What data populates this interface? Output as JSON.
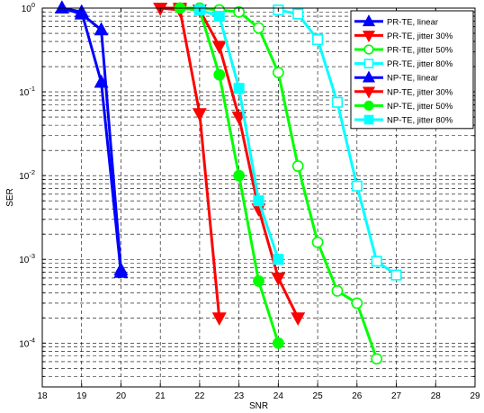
{
  "chart_data": {
    "type": "line",
    "xlabel": "SNR",
    "ylabel": "SER",
    "xlim": [
      18,
      29
    ],
    "ylim": [
      3e-05,
      1
    ],
    "yscale": "log",
    "grid": true,
    "x_ticks": [
      "18",
      "19",
      "20",
      "21",
      "22",
      "23",
      "24",
      "25",
      "26",
      "27",
      "28",
      "29"
    ],
    "y_ticks": [
      {
        "base": "10",
        "exp": "0",
        "value": 1
      },
      {
        "base": "10",
        "exp": "-1",
        "value": 0.1
      },
      {
        "base": "10",
        "exp": "-2",
        "value": 0.01
      },
      {
        "base": "10",
        "exp": "-3",
        "value": 0.001
      },
      {
        "base": "10",
        "exp": "-4",
        "value": 0.0001
      }
    ],
    "legend_position": "top-right",
    "series": [
      {
        "name": "PR-TE, linear",
        "color": "#0000ff",
        "marker": "triangle-up",
        "filled": true,
        "x": [
          18.5,
          19,
          19.5,
          20
        ],
        "y": [
          1,
          0.9,
          0.13,
          0.0007
        ]
      },
      {
        "name": "PR-TE, jitter 30%",
        "color": "#ff0000",
        "marker": "triangle-down",
        "filled": true,
        "x": [
          21,
          21.5,
          22,
          22.5,
          23,
          23.5,
          24,
          24.5
        ],
        "y": [
          1,
          1,
          0.95,
          0.35,
          0.05,
          0.004,
          0.0006,
          0.0002
        ]
      },
      {
        "name": "PR-TE, jitter 50%",
        "color": "#00ff00",
        "marker": "circle",
        "filled": false,
        "x": [
          21.5,
          22,
          22.5,
          23,
          23.5,
          24,
          24.5,
          25,
          25.5,
          26,
          26.5
        ],
        "y": [
          1,
          1,
          0.95,
          0.9,
          0.58,
          0.17,
          0.013,
          0.0016,
          0.00042,
          0.0003,
          6.5e-05
        ]
      },
      {
        "name": "PR-TE, jitter 80%",
        "color": "#00ffff",
        "marker": "square",
        "filled": false,
        "x": [
          24,
          24.5,
          25,
          25.5,
          26,
          26.5,
          27
        ],
        "y": [
          0.95,
          0.85,
          0.42,
          0.075,
          0.0075,
          0.00095,
          0.00065
        ]
      },
      {
        "name": "NP-TE, linear",
        "color": "#0000ff",
        "marker": "triangle-up",
        "filled": true,
        "x": [
          18.5,
          19,
          19.5,
          20
        ],
        "y": [
          1,
          0.85,
          0.55,
          0.00075
        ]
      },
      {
        "name": "NP-TE, jitter 30%",
        "color": "#ff0000",
        "marker": "triangle-down",
        "filled": true,
        "x": [
          21,
          21.5,
          22,
          22.5
        ],
        "y": [
          1,
          0.95,
          0.055,
          0.0002
        ]
      },
      {
        "name": "NP-TE, jitter 50%",
        "color": "#00ff00",
        "marker": "circle",
        "filled": true,
        "x": [
          21.5,
          22,
          22.5,
          23,
          23.5,
          24
        ],
        "y": [
          1,
          0.95,
          0.16,
          0.01,
          0.00055,
          0.0001
        ]
      },
      {
        "name": "NP-TE, jitter 80%",
        "color": "#00ffff",
        "marker": "square",
        "filled": true,
        "x": [
          22,
          22.5,
          23,
          23.5,
          24
        ],
        "y": [
          0.95,
          0.8,
          0.11,
          0.005,
          0.001
        ]
      }
    ]
  }
}
